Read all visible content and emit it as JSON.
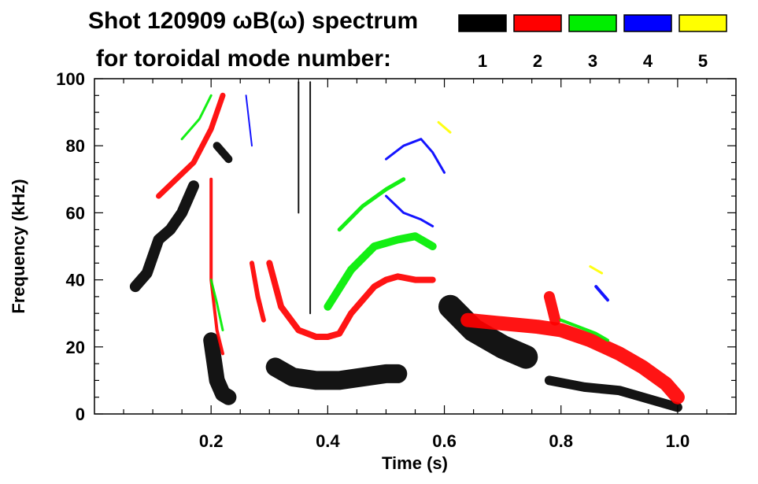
{
  "chart_data": {
    "type": "spectrogram",
    "title_line1": "Shot 120909 ωB(ω) spectrum",
    "title_line2": "for toroidal mode number:",
    "xlabel": "Time (s)",
    "ylabel": "Frequency (kHz)",
    "xlim": [
      0.0,
      1.1
    ],
    "ylim": [
      0,
      100
    ],
    "xticks": [
      0.2,
      0.4,
      0.6,
      0.8,
      1.0
    ],
    "xtick_labels": [
      "0.2",
      "0.4",
      "0.6",
      "0.8",
      "1.0"
    ],
    "yticks": [
      0,
      20,
      40,
      60,
      80,
      100
    ],
    "ytick_labels": [
      "0",
      "20",
      "40",
      "60",
      "80",
      "100"
    ],
    "legend": [
      {
        "label": "1",
        "color": "#000000"
      },
      {
        "label": "2",
        "color": "#ff0000"
      },
      {
        "label": "3",
        "color": "#00ee00"
      },
      {
        "label": "4",
        "color": "#0000ff"
      },
      {
        "label": "5",
        "color": "#ffff00"
      }
    ],
    "series": [
      {
        "name": "n=1",
        "mode": 1,
        "segments": [
          {
            "points": [
              [
                0.07,
                38
              ],
              [
                0.09,
                42
              ],
              [
                0.11,
                52
              ],
              [
                0.13,
                55
              ],
              [
                0.15,
                60
              ],
              [
                0.17,
                68
              ]
            ],
            "width": 14
          },
          {
            "points": [
              [
                0.2,
                22
              ],
              [
                0.21,
                10
              ],
              [
                0.22,
                6
              ],
              [
                0.23,
                5
              ]
            ],
            "width": 20
          },
          {
            "points": [
              [
                0.21,
                80
              ],
              [
                0.22,
                78
              ],
              [
                0.23,
                76
              ]
            ],
            "width": 10
          },
          {
            "points": [
              [
                0.31,
                14
              ],
              [
                0.34,
                11
              ],
              [
                0.38,
                10
              ],
              [
                0.42,
                10
              ],
              [
                0.46,
                11
              ],
              [
                0.5,
                12
              ],
              [
                0.52,
                12
              ]
            ],
            "width": 24
          },
          {
            "points": [
              [
                0.61,
                32
              ],
              [
                0.65,
                25
              ],
              [
                0.7,
                20
              ],
              [
                0.74,
                17
              ]
            ],
            "width": 30
          },
          {
            "points": [
              [
                0.78,
                10
              ],
              [
                0.84,
                8
              ],
              [
                0.9,
                7
              ],
              [
                0.96,
                4
              ],
              [
                1.0,
                2
              ]
            ],
            "width": 12
          },
          {
            "points": [
              [
                0.35,
                99
              ],
              [
                0.35,
                60
              ]
            ],
            "width": 2
          },
          {
            "points": [
              [
                0.37,
                99
              ],
              [
                0.37,
                30
              ]
            ],
            "width": 2
          }
        ]
      },
      {
        "name": "n=2",
        "mode": 2,
        "segments": [
          {
            "points": [
              [
                0.11,
                65
              ],
              [
                0.14,
                70
              ],
              [
                0.17,
                75
              ],
              [
                0.2,
                85
              ],
              [
                0.22,
                95
              ]
            ],
            "width": 7
          },
          {
            "points": [
              [
                0.2,
                70
              ],
              [
                0.2,
                40
              ],
              [
                0.21,
                25
              ],
              [
                0.22,
                18
              ]
            ],
            "width": 4
          },
          {
            "points": [
              [
                0.27,
                45
              ],
              [
                0.28,
                35
              ],
              [
                0.29,
                28
              ]
            ],
            "width": 6
          },
          {
            "points": [
              [
                0.3,
                45
              ],
              [
                0.32,
                32
              ],
              [
                0.35,
                25
              ],
              [
                0.38,
                23
              ],
              [
                0.4,
                23
              ],
              [
                0.42,
                24
              ],
              [
                0.44,
                30
              ],
              [
                0.48,
                38
              ],
              [
                0.5,
                40
              ],
              [
                0.52,
                41
              ],
              [
                0.55,
                40
              ],
              [
                0.58,
                40
              ]
            ],
            "width": 8
          },
          {
            "points": [
              [
                0.64,
                28
              ],
              [
                0.7,
                27
              ],
              [
                0.76,
                26
              ],
              [
                0.8,
                25
              ],
              [
                0.85,
                22
              ],
              [
                0.9,
                18
              ],
              [
                0.94,
                14
              ],
              [
                0.98,
                9
              ],
              [
                1.0,
                5
              ]
            ],
            "width": 18
          },
          {
            "points": [
              [
                0.78,
                35
              ],
              [
                0.79,
                28
              ]
            ],
            "width": 14
          }
        ]
      },
      {
        "name": "n=3",
        "mode": 3,
        "segments": [
          {
            "points": [
              [
                0.15,
                82
              ],
              [
                0.18,
                88
              ],
              [
                0.2,
                95
              ]
            ],
            "width": 3
          },
          {
            "points": [
              [
                0.4,
                32
              ],
              [
                0.44,
                43
              ],
              [
                0.48,
                50
              ],
              [
                0.52,
                52
              ],
              [
                0.55,
                53
              ],
              [
                0.58,
                50
              ]
            ],
            "width": 10
          },
          {
            "points": [
              [
                0.42,
                55
              ],
              [
                0.46,
                62
              ],
              [
                0.5,
                67
              ],
              [
                0.53,
                70
              ]
            ],
            "width": 5
          },
          {
            "points": [
              [
                0.2,
                40
              ],
              [
                0.21,
                33
              ],
              [
                0.22,
                25
              ]
            ],
            "width": 3
          },
          {
            "points": [
              [
                0.8,
                28
              ],
              [
                0.83,
                26
              ],
              [
                0.86,
                24
              ],
              [
                0.88,
                22
              ]
            ],
            "width": 4
          }
        ]
      },
      {
        "name": "n=4",
        "mode": 4,
        "segments": [
          {
            "points": [
              [
                0.5,
                76
              ],
              [
                0.53,
                80
              ],
              [
                0.56,
                82
              ],
              [
                0.58,
                78
              ],
              [
                0.6,
                72
              ]
            ],
            "width": 3
          },
          {
            "points": [
              [
                0.5,
                65
              ],
              [
                0.53,
                60
              ],
              [
                0.56,
                58
              ],
              [
                0.58,
                56
              ]
            ],
            "width": 3
          },
          {
            "points": [
              [
                0.86,
                38
              ],
              [
                0.88,
                34
              ]
            ],
            "width": 4
          },
          {
            "points": [
              [
                0.26,
                95
              ],
              [
                0.27,
                80
              ]
            ],
            "width": 2
          }
        ]
      },
      {
        "name": "n=5",
        "mode": 5,
        "segments": [
          {
            "points": [
              [
                0.59,
                87
              ],
              [
                0.61,
                84
              ]
            ],
            "width": 3
          },
          {
            "points": [
              [
                0.85,
                44
              ],
              [
                0.87,
                42
              ]
            ],
            "width": 3
          }
        ]
      }
    ]
  }
}
